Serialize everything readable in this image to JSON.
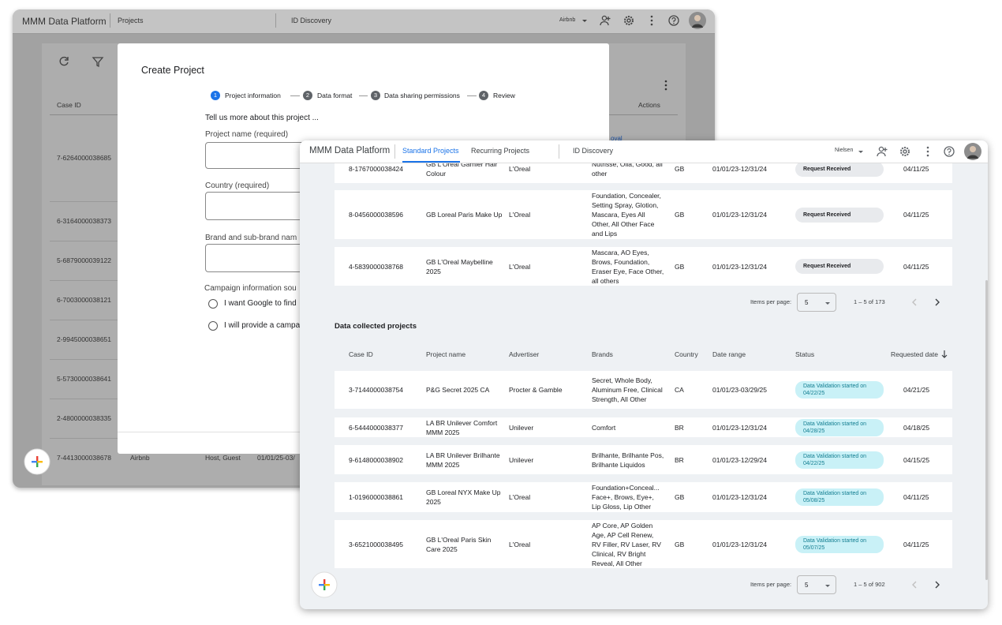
{
  "back_window": {
    "app_name": "MMM Data Platform",
    "nav": [
      "Projects",
      "ID Discovery"
    ],
    "account": "Airbnb",
    "table": {
      "headers": [
        "Case ID",
        "Actions"
      ],
      "action_fragment": "oval",
      "case_ids": [
        "7-6264000038685",
        "6-3164000038373",
        "5-6879000039122",
        "6-7003000038121",
        "2-9945000038651",
        "5-5730000038641",
        "2-4800000038335",
        "7-4413000038678"
      ],
      "last_row": [
        "Airbnb",
        "Host, Guest",
        "01/01/25-03/"
      ]
    }
  },
  "modal": {
    "title": "Create Project",
    "steps": [
      {
        "number": "1",
        "label": "Project information"
      },
      {
        "number": "2",
        "label": "Data format"
      },
      {
        "number": "3",
        "label": "Data sharing permissions"
      },
      {
        "number": "4",
        "label": "Review"
      }
    ],
    "intro": "Tell us more about this project ...",
    "fields": [
      "Project name (required)",
      "Country (required)",
      "Brand and sub-brand nam"
    ],
    "campaign_label": "Campaign information sou",
    "options": [
      "I want Google to find",
      "I will provide a campa"
    ]
  },
  "front_window": {
    "app_name": "MMM Data Platform",
    "tabs": [
      "Standard Projects",
      "Recurring Projects"
    ],
    "nav": "ID Discovery",
    "account": "Nielsen",
    "top_table": {
      "rows": [
        [
          "8-1767000038424",
          "GB L'Oreal Garnier Hair Colour",
          "L'Oreal",
          "Nutrisse, Olia, Good, all other",
          "GB",
          "01/01/23-12/31/24",
          "Request Received",
          "04/11/25"
        ],
        [
          "8-0456000038596",
          "GB Loreal Paris Make Up",
          "L'Oreal",
          "Foundation, Concealer, Setting Spray, Glotion, Mascara, Eyes All Other, All Other Face and Lips",
          "GB",
          "01/01/23-12/31/24",
          "Request Received",
          "04/11/25"
        ],
        [
          "4-5839000038768",
          "GB L'Oreal Maybelline 2025",
          "L'Oreal",
          "Mascara, AO Eyes, Brows, Foundation, Eraser Eye, Face Other, all others",
          "GB",
          "01/01/23-12/31/24",
          "Request Received",
          "04/11/25"
        ]
      ],
      "items_per_page_label": "Items per page:",
      "items_per_page": "5",
      "range": "1 – 5 of 173"
    },
    "collected": {
      "title": "Data collected projects",
      "headers": [
        "Case ID",
        "Project name",
        "Advertiser",
        "Brands",
        "Country",
        "Date range",
        "Status",
        "Requested date"
      ],
      "rows": [
        [
          "3-7144000038754",
          "P&G Secret 2025 CA",
          "Procter & Gamble",
          "Secret, Whole Body, Aluminum Free, Clinical Strength, All Other",
          "CA",
          "01/01/23-03/29/25",
          "Data Validation started on 04/22/25",
          "04/21/25"
        ],
        [
          "6-5444000038377",
          "LA BR Unilever Comfort MMM 2025",
          "Unilever",
          "Comfort",
          "BR",
          "01/01/23-12/31/24",
          "Data Validation started on 04/28/25",
          "04/18/25"
        ],
        [
          "9-6148000038902",
          "LA BR Unilever Brilhante MMM 2025",
          "Unilever",
          "Brilhante, Brilhante Pos, Brilhante Liquidos",
          "BR",
          "01/01/23-12/29/24",
          "Data Validation started on 04/22/25",
          "04/15/25"
        ],
        [
          "1-0196000038861",
          "GB Loreal NYX Make Up 2025",
          "L'Oreal",
          "Foundation+Conceal... Face+, Brows, Eye+, Lip Gloss, Lip Other",
          "GB",
          "01/01/23-12/31/24",
          "Data Validation started on 05/08/25",
          "04/11/25"
        ],
        [
          "3-6521000038495",
          "GB L'Oreal Paris Skin Care 2025",
          "L'Oreal",
          "AP Core, AP Golden Age, AP Cell Renew, RV Filler, RV Laser, RV Clinical, RV Bright Reveal, All Other",
          "GB",
          "01/01/23-12/31/24",
          "Data Validation started on 05/07/25",
          "04/11/25"
        ]
      ],
      "items_per_page_label": "Items per page:",
      "items_per_page": "5",
      "range": "1 – 5 of 902"
    }
  }
}
